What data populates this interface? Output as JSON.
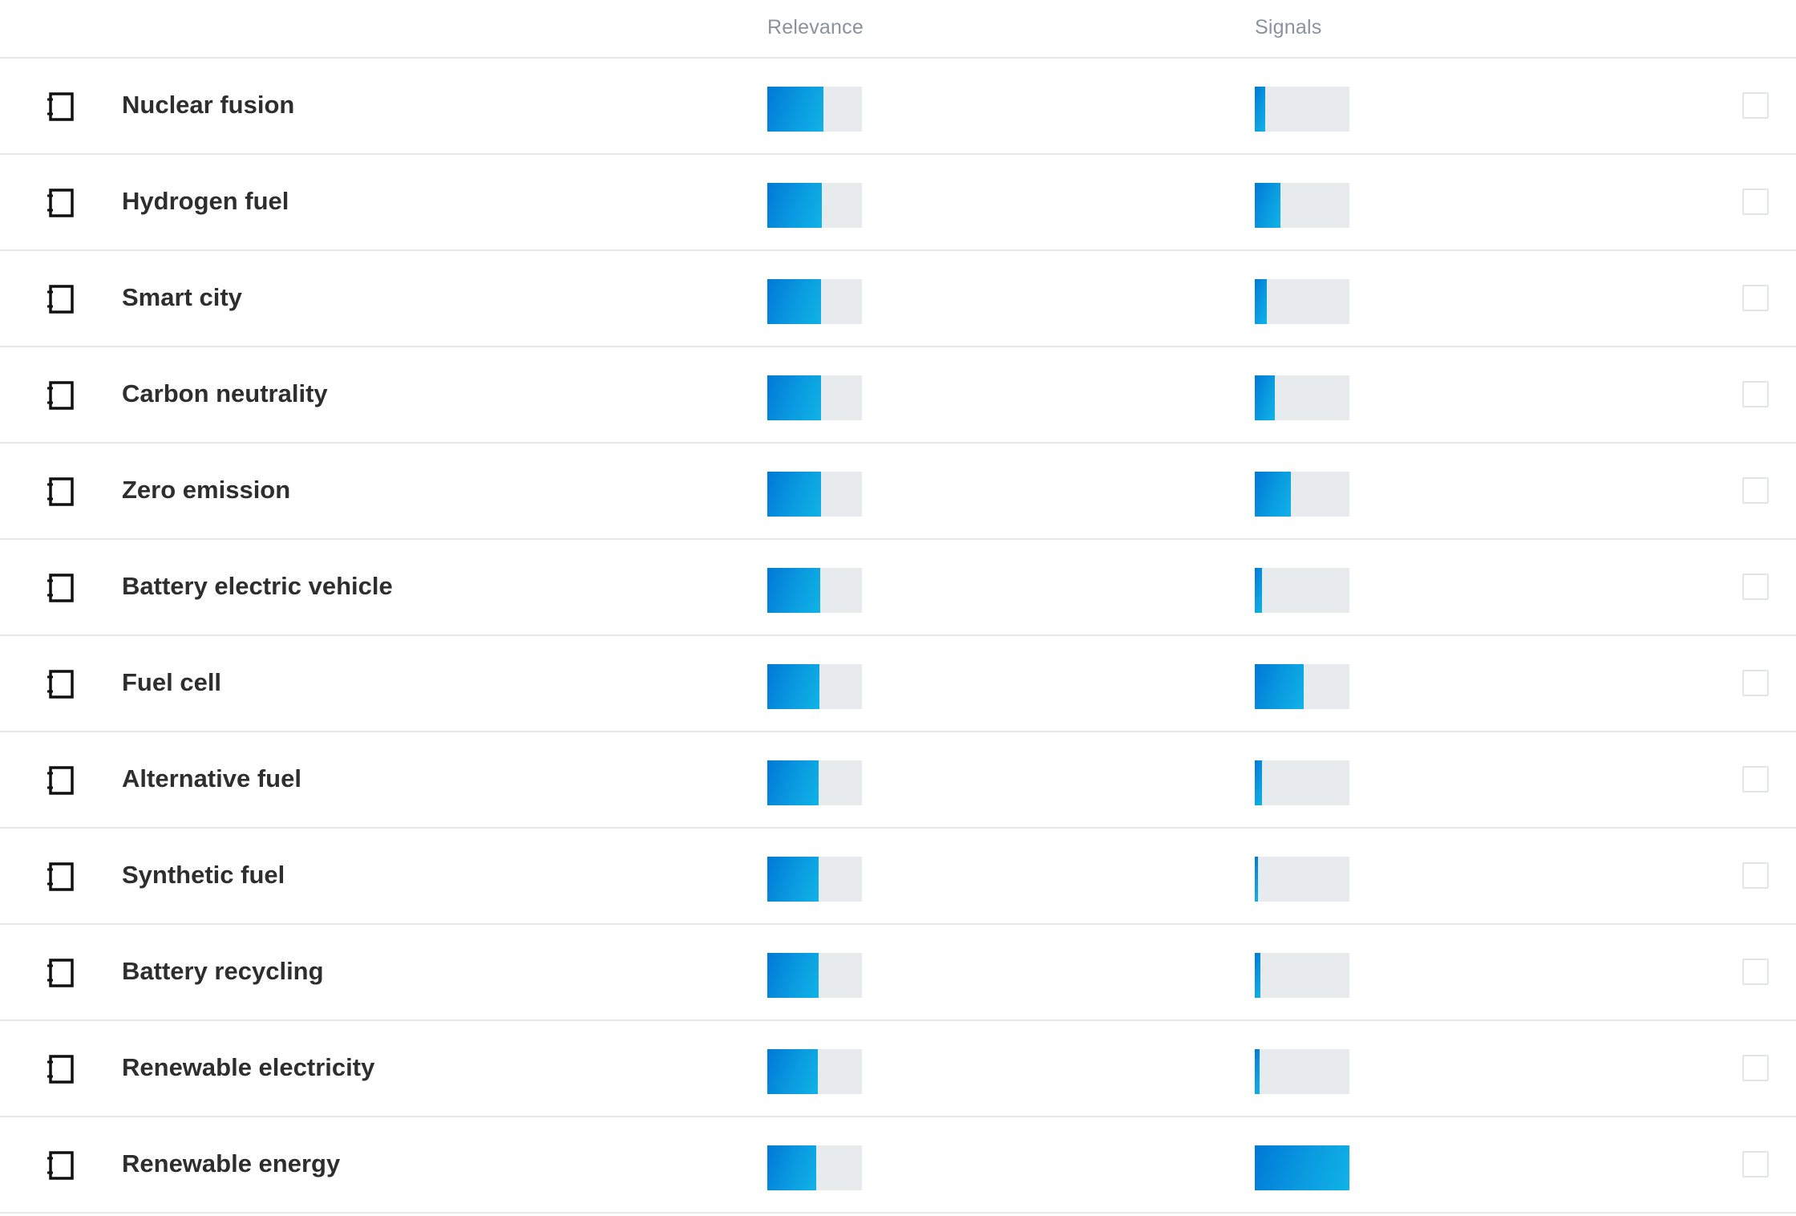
{
  "columns": {
    "relevance": "Relevance",
    "signals": "Signals"
  },
  "colors": {
    "bar_fill": "#0a9be0",
    "bar_track": "#e7ebee",
    "divider": "#e6e9ec"
  },
  "icons": {
    "row_icon": "notebook-icon"
  },
  "rows": [
    {
      "label": "Nuclear fusion",
      "relevance": 0.59,
      "signals": 0.11
    },
    {
      "label": "Hydrogen fuel",
      "relevance": 0.58,
      "signals": 0.27
    },
    {
      "label": "Smart city",
      "relevance": 0.57,
      "signals": 0.13
    },
    {
      "label": "Carbon neutrality",
      "relevance": 0.57,
      "signals": 0.21
    },
    {
      "label": "Zero emission",
      "relevance": 0.57,
      "signals": 0.38
    },
    {
      "label": "Battery electric vehicle",
      "relevance": 0.56,
      "signals": 0.08
    },
    {
      "label": "Fuel cell",
      "relevance": 0.55,
      "signals": 0.52
    },
    {
      "label": "Alternative fuel",
      "relevance": 0.54,
      "signals": 0.08
    },
    {
      "label": "Synthetic fuel",
      "relevance": 0.54,
      "signals": 0.03
    },
    {
      "label": "Battery recycling",
      "relevance": 0.54,
      "signals": 0.06
    },
    {
      "label": "Renewable electricity",
      "relevance": 0.53,
      "signals": 0.05
    },
    {
      "label": "Renewable energy",
      "relevance": 0.52,
      "signals": 1.0
    }
  ]
}
